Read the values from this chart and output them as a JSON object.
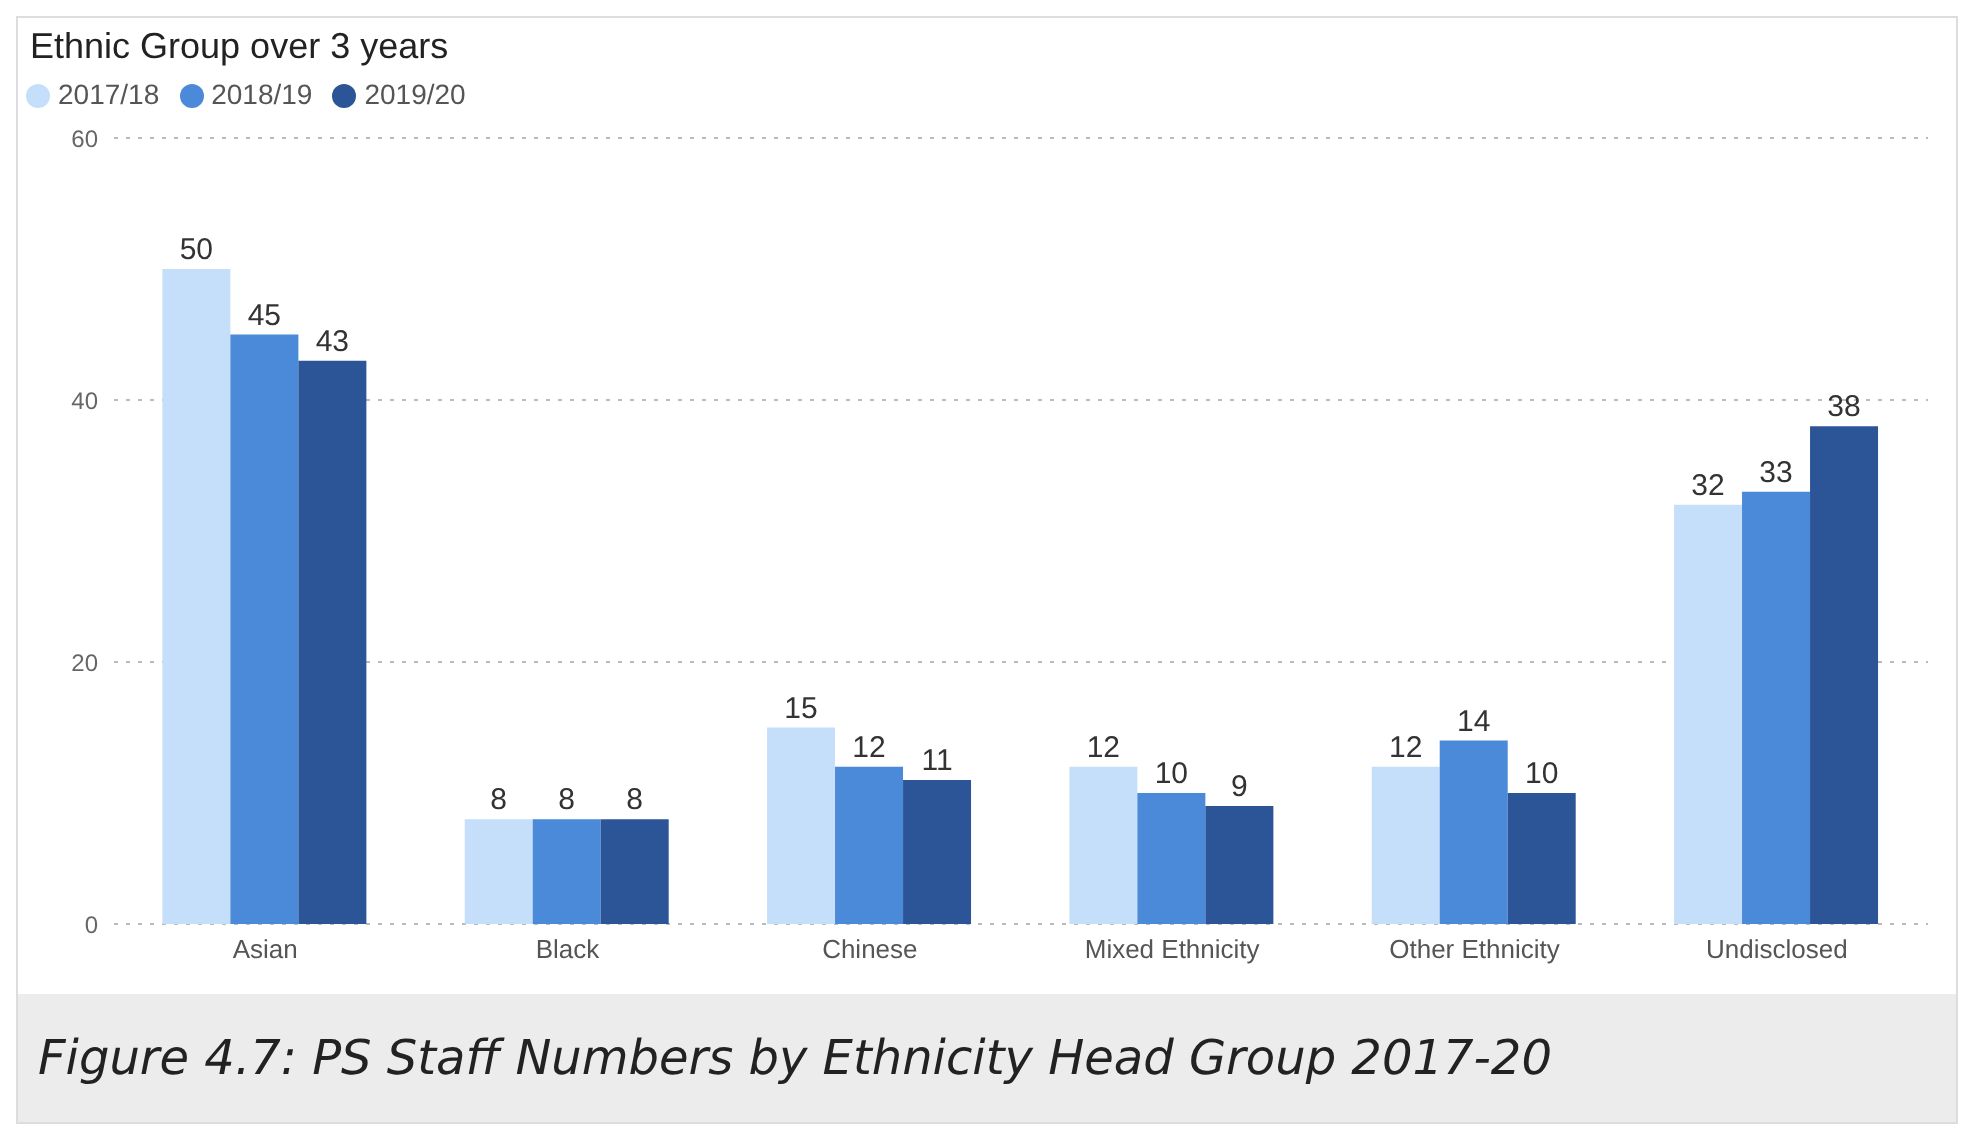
{
  "chart_data": {
    "type": "bar",
    "title": "Ethnic Group over 3 years",
    "categories": [
      "Asian",
      "Black",
      "Chinese",
      "Mixed Ethnicity",
      "Other Ethnicity",
      "Undisclosed"
    ],
    "series": [
      {
        "name": "2017/18",
        "color": "#c5dffb",
        "values": [
          50,
          8,
          15,
          12,
          12,
          32
        ]
      },
      {
        "name": "2018/19",
        "color": "#4a8ad8",
        "values": [
          45,
          8,
          12,
          10,
          14,
          33
        ]
      },
      {
        "name": "2019/20",
        "color": "#2c5598",
        "values": [
          43,
          8,
          11,
          9,
          10,
          38
        ]
      }
    ],
    "ylim": [
      0,
      60
    ],
    "yticks": [
      0,
      20,
      40,
      60
    ],
    "grid": "y",
    "legend": "top left",
    "data_labels": true,
    "annotations": [
      "Figure 4.7: PS Staff Numbers by Ethnicity Head Group 2017-20"
    ]
  }
}
